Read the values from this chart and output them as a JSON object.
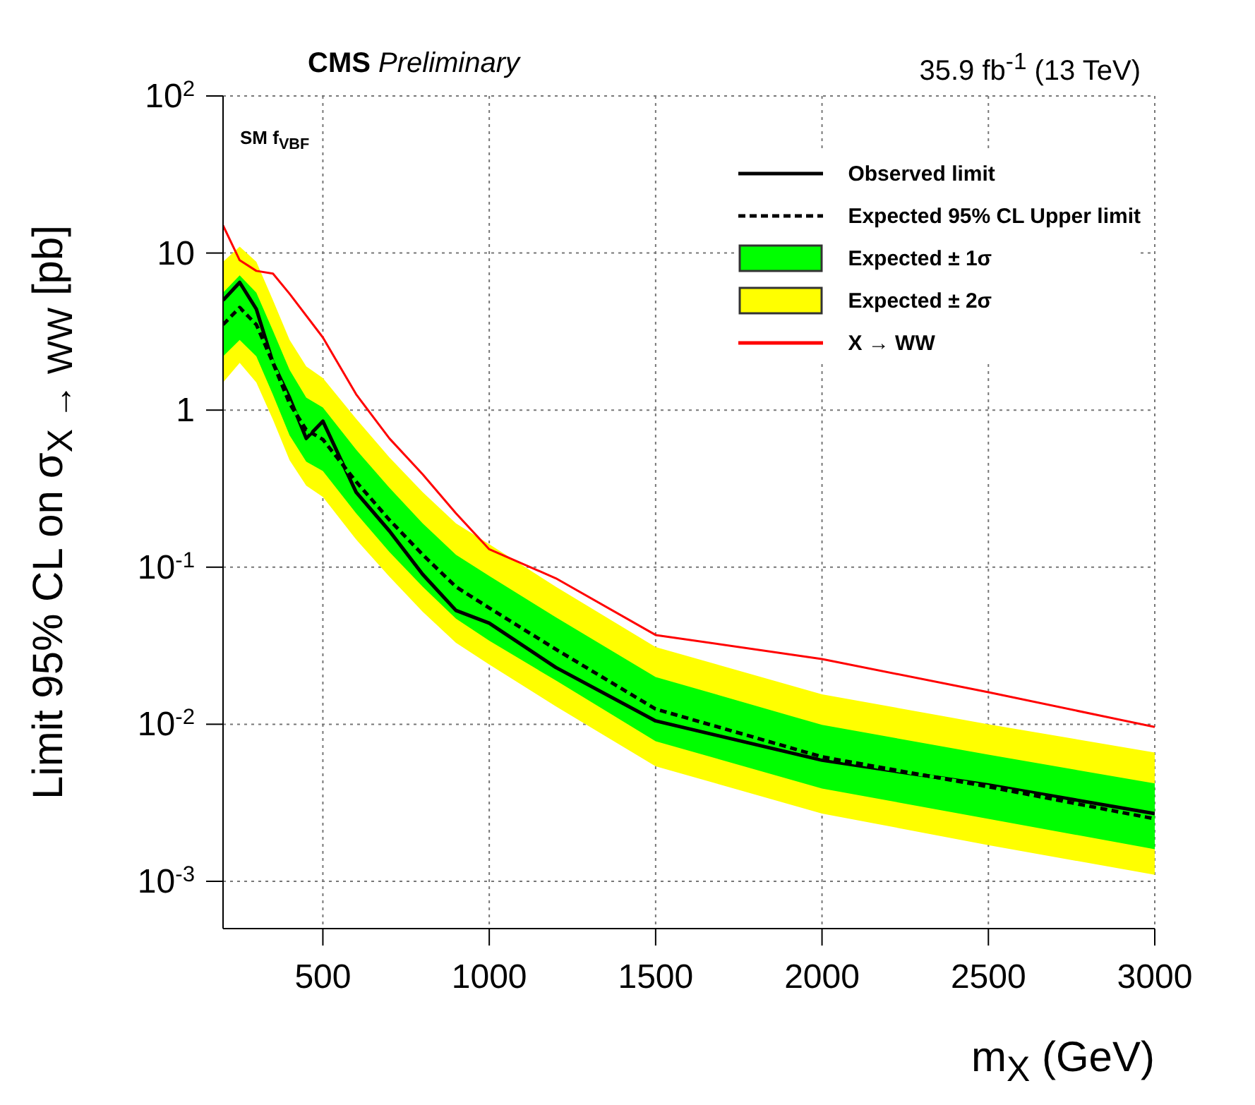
{
  "chart_data": {
    "type": "line",
    "title": "CMS Preliminary",
    "subtitle": "35.9 fb$^{-1}$ (13 TeV)",
    "annotations": [
      "SM f$_{VBF}$"
    ],
    "xlabel": "m$_{X}$ (GeV)",
    "ylabel": "Limit 95% CL on σ$_{X → WW}$ [pb]",
    "x": [
      200,
      250,
      300,
      350,
      400,
      450,
      500,
      600,
      700,
      800,
      900,
      1000,
      1200,
      1500,
      2000,
      2500,
      3000
    ],
    "series": [
      {
        "name": "Observed limit",
        "type": "line",
        "color": "#000000",
        "line_style": "solid",
        "values": [
          5,
          6.5,
          4.4,
          2.0,
          1.2,
          0.66,
          0.85,
          0.3,
          0.17,
          0.09,
          0.053,
          0.044,
          0.023,
          0.0105,
          0.0059,
          0.0041,
          0.0027
        ]
      },
      {
        "name": "Expected 95% CL Upper limit",
        "type": "line",
        "color": "#000000",
        "line_style": "dashed",
        "values": [
          3.5,
          4.5,
          3.5,
          2.0,
          1.1,
          0.75,
          0.65,
          0.35,
          0.2,
          0.12,
          0.075,
          0.055,
          0.03,
          0.0125,
          0.0062,
          0.004,
          0.0025
        ]
      },
      {
        "name": "Expected ± 1σ",
        "type": "line",
        "color": "#00ff00",
        "line_style": "dashed",
        "values": [
          3.5,
          4.5,
          3.5,
          2.0,
          1.1,
          0.75,
          0.65,
          0.35,
          0.2,
          0.12,
          0.075,
          0.055,
          0.03,
          0.0125,
          0.0062,
          0.004,
          0.0025
        ],
        "lower": [
          2.2,
          2.8,
          2.2,
          1.25,
          0.69,
          0.47,
          0.41,
          0.22,
          0.125,
          0.075,
          0.047,
          0.034,
          0.019,
          0.0078,
          0.0039,
          0.0025,
          0.0016
        ],
        "upper": [
          5.6,
          7.2,
          5.6,
          3.2,
          1.8,
          1.2,
          1.04,
          0.56,
          0.32,
          0.19,
          0.12,
          0.088,
          0.048,
          0.02,
          0.0099,
          0.0064,
          0.0042
        ]
      },
      {
        "name": "Expected ± 2σ",
        "type": "line",
        "color": "#ffff00",
        "values": [
          null,
          null,
          null,
          null,
          null,
          null,
          null,
          null,
          null,
          null,
          null,
          null,
          null,
          null,
          null,
          null,
          null
        ],
        "lower": [
          1.5,
          2,
          1.5,
          0.87,
          0.48,
          0.33,
          0.28,
          0.15,
          0.087,
          0.052,
          0.033,
          0.024,
          0.013,
          0.0054,
          0.0027,
          0.0017,
          0.0011
        ],
        "upper": [
          8.8,
          11,
          8.8,
          5,
          2.8,
          1.9,
          1.6,
          0.88,
          0.5,
          0.3,
          0.19,
          0.14,
          0.075,
          0.031,
          0.0155,
          0.01,
          0.0066
        ]
      },
      {
        "name": "X → WW",
        "type": "line",
        "color": "#ff0000",
        "line_style": "solid",
        "x": [
          200,
          250,
          300,
          350,
          400,
          500,
          600,
          700,
          800,
          900,
          1000,
          1200,
          1500,
          2000,
          2500,
          3000
        ],
        "values": [
          15,
          9,
          7.7,
          7.4,
          5.5,
          2.9,
          1.26,
          0.66,
          0.39,
          0.22,
          0.13,
          0.085,
          0.037,
          0.026,
          0.016,
          0.0096
        ]
      }
    ],
    "xlim": [
      200,
      3000
    ],
    "xticks": [
      500,
      1000,
      1500,
      2000,
      2500,
      3000
    ],
    "ylim": [
      0.0005,
      100
    ],
    "yticks": [
      {
        "value": 0.001,
        "label": "10$^{-3}$"
      },
      {
        "value": 0.01,
        "label": "10$^{-2}$"
      },
      {
        "value": 0.1,
        "label": "10$^{-1}$"
      },
      1,
      10,
      {
        "value": 100,
        "label": "10$^{2}$"
      }
    ],
    "log": "y",
    "grid": true,
    "legend": "top right",
    "marker": "none"
  }
}
